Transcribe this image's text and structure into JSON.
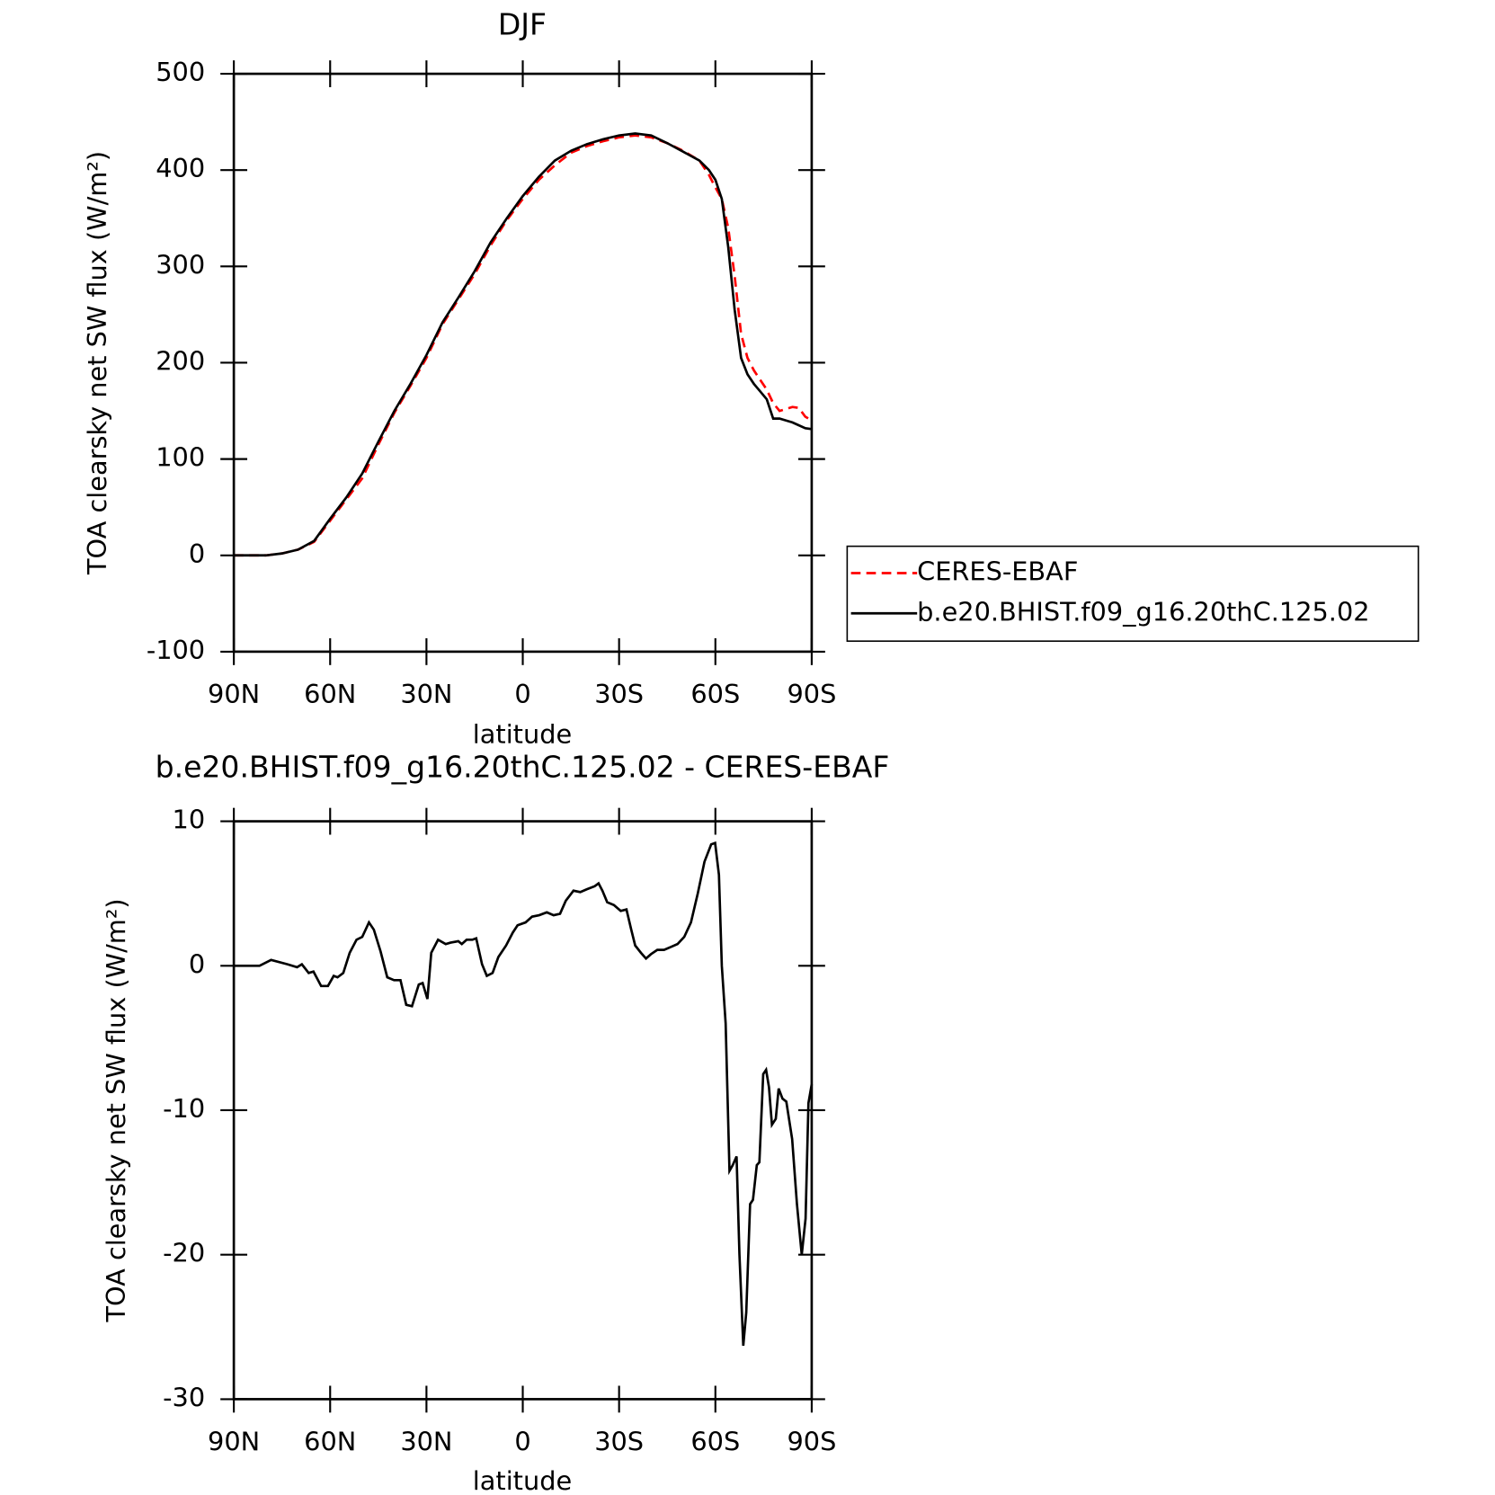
{
  "chart_data": [
    {
      "type": "line",
      "title": "DJF",
      "x_label": "latitude",
      "y_label": "TOA clearsky net SW flux (W/m²)",
      "x": [
        90,
        85,
        80,
        75,
        70,
        65,
        60,
        55,
        50,
        45,
        40,
        35,
        30,
        25,
        20,
        15,
        10,
        5,
        0,
        -5,
        -10,
        -15,
        -20,
        -25,
        -30,
        -35,
        -40,
        -45,
        -50,
        -55,
        -58,
        -60,
        -62,
        -64,
        -66,
        -68,
        -70,
        -72,
        -74,
        -76,
        -78,
        -80,
        -82,
        -84,
        -86,
        -88,
        -90
      ],
      "series": [
        {
          "name": "CERES-EBAF",
          "color": "#ff0000",
          "line_style": "dashed",
          "values": [
            0,
            0,
            0,
            2,
            6,
            14,
            36,
            58,
            80,
            115,
            148,
            176,
            205,
            240,
            266,
            292,
            322,
            348,
            370,
            390,
            405,
            418,
            425,
            430,
            434,
            436,
            434,
            428,
            420,
            410,
            395,
            382,
            370,
            340,
            290,
            230,
            205,
            192,
            182,
            172,
            158,
            150,
            152,
            154,
            153,
            144,
            140
          ]
        },
        {
          "name": "b.e20.BHIST.f09_g16.20thC.125.02",
          "color": "#000000",
          "line_style": "solid",
          "values": [
            0,
            0,
            0,
            2,
            6,
            15,
            38,
            60,
            85,
            118,
            150,
            178,
            208,
            242,
            268,
            295,
            325,
            350,
            373,
            393,
            410,
            420,
            427,
            432,
            436,
            438,
            436,
            428,
            419,
            410,
            400,
            390,
            370,
            320,
            255,
            205,
            188,
            178,
            170,
            162,
            142,
            142,
            140,
            138,
            135,
            132,
            131
          ]
        }
      ],
      "xlim": [
        90,
        -90
      ],
      "xticks": [
        {
          "value": 90,
          "label": "90N"
        },
        {
          "value": 60,
          "label": "60N"
        },
        {
          "value": 30,
          "label": "30N"
        },
        0,
        {
          "value": -30,
          "label": "30S"
        },
        {
          "value": -60,
          "label": "60S"
        },
        {
          "value": -90,
          "label": "90S"
        }
      ],
      "ylim": [
        -100,
        500
      ],
      "yticks": [
        -100,
        0,
        100,
        200,
        300,
        400,
        500
      ],
      "legend": "outside-right"
    },
    {
      "type": "line",
      "title": "b.e20.BHIST.f09_g16.20thC.125.02 - CERES-EBAF",
      "x_label": "latitude",
      "y_label": "TOA clearsky net SW flux (W/m²)",
      "color": "#000000",
      "x": [
        90,
        82,
        78.4,
        73.3,
        70.3,
        68.8,
        66.7,
        65.2,
        62.8,
        60.7,
        58.9,
        57.7,
        55.9,
        53.9,
        51.8,
        50,
        47.9,
        46.4,
        44.3,
        42.2,
        40.1,
        38.1,
        36.3,
        34.5,
        32.4,
        31.2,
        29.7,
        28.5,
        26.4,
        24,
        22.5,
        20.1,
        19,
        17.5,
        15.7,
        14.5,
        12.7,
        11.2,
        9.4,
        7.6,
        5.2,
        3.1,
        1.6,
        -0.9,
        -2.9,
        -5.1,
        -7.5,
        -9.6,
        -11.6,
        -13.4,
        -15.8,
        -17.9,
        -20,
        -22.4,
        -23.6,
        -24.8,
        -26.3,
        -28.4,
        -30.5,
        -32.3,
        -33.8,
        -35,
        -36.8,
        -38.4,
        -39.9,
        -41.9,
        -44,
        -46.1,
        -48.2,
        -50.3,
        -52.4,
        -54.5,
        -56.6,
        -58.7,
        -59.9,
        -61.1,
        -62,
        -63.2,
        -64.4,
        -65.4,
        -66.6,
        -67.5,
        -68.7,
        -69.6,
        -70.8,
        -71.7,
        -72.9,
        -73.7,
        -74.9,
        -75.8,
        -76.7,
        -77.6,
        -78.8,
        -79.7,
        -80.9,
        -82.1,
        -83.9,
        -85.4,
        -86.9,
        -88.1,
        -89,
        -90
      ],
      "values": [
        0,
        0,
        0.4,
        0.1,
        -0.1,
        0.1,
        -0.5,
        -0.4,
        -1.4,
        -1.4,
        -0.7,
        -0.8,
        -0.5,
        0.9,
        1.8,
        2,
        3,
        2.5,
        1,
        -0.8,
        -1,
        -1,
        -2.7,
        -2.8,
        -1.3,
        -1.2,
        -2.3,
        0.9,
        1.8,
        1.5,
        1.6,
        1.7,
        1.5,
        1.8,
        1.8,
        1.9,
        0.1,
        -0.7,
        -0.5,
        0.6,
        1.4,
        2.3,
        2.8,
        3,
        3.4,
        3.5,
        3.7,
        3.5,
        3.6,
        4.5,
        5.2,
        5.1,
        5.3,
        5.5,
        5.7,
        5.2,
        4.4,
        4.2,
        3.8,
        3.9,
        2.5,
        1.4,
        0.9,
        0.5,
        0.8,
        1.1,
        1.1,
        1.3,
        1.5,
        2,
        3,
        5,
        7.2,
        8.4,
        8.5,
        6.3,
        0,
        -4,
        -14.2,
        -13.8,
        -13.2,
        -20,
        -26.3,
        -24,
        -16.5,
        -16.2,
        -13.8,
        -13.6,
        -7.5,
        -7.2,
        -8.4,
        -11,
        -10.6,
        -8.5,
        -9.2,
        -9.4,
        -12,
        -16.5,
        -20,
        -17.5,
        -9.5,
        -8.2
      ],
      "xlim": [
        90,
        -90
      ],
      "xticks": [
        {
          "value": 90,
          "label": "90N"
        },
        {
          "value": 60,
          "label": "60N"
        },
        {
          "value": 30,
          "label": "30N"
        },
        0,
        {
          "value": -30,
          "label": "30S"
        },
        {
          "value": -60,
          "label": "60S"
        },
        {
          "value": -90,
          "label": "90S"
        }
      ],
      "ylim": [
        -30,
        10
      ],
      "yticks": [
        -30,
        -20,
        -10,
        0,
        10
      ]
    }
  ]
}
